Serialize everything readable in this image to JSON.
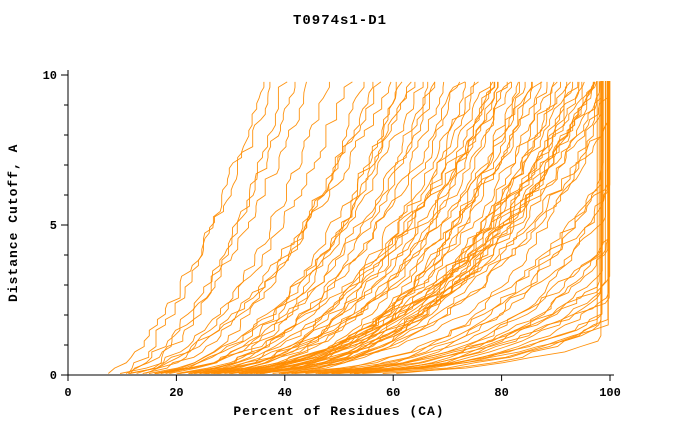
{
  "accent_color": "#ff8c00",
  "axis_color": "#000000",
  "background_color": "#ffffff",
  "chart_data": {
    "type": "line",
    "title": "T0974s1-D1",
    "xlabel": "Percent of Residues (CA)",
    "ylabel": "Distance Cutoff, A",
    "xlim": [
      0,
      100
    ],
    "ylim": [
      0,
      10
    ],
    "x_ticks": [
      0,
      20,
      40,
      60,
      80,
      100
    ],
    "y_ticks": [
      0,
      5,
      10
    ],
    "y_minor_step": 1,
    "grid": false,
    "legend": "none",
    "line_color": "#ff8c00",
    "series_description": "Cumulative model-accuracy curves: each curve is one predicted model; x = percent of CA residues superimposable, y = distance cutoff in Angstroms. Each curve is encoded as [x_at_bottom, x_at_top_extrapolated, shape_exponent]; curves hitting 100% rise vertically at the right edge.",
    "ytop_plot": 9.8,
    "curves": [
      [
        6,
        38,
        1.6
      ],
      [
        8,
        42,
        1.8
      ],
      [
        10,
        36,
        1.5
      ],
      [
        12,
        48,
        2.0
      ],
      [
        7,
        52,
        2.1
      ],
      [
        9,
        45,
        1.7
      ],
      [
        13,
        55,
        2.2
      ],
      [
        11,
        40,
        1.9
      ],
      [
        8,
        58,
        2.0
      ],
      [
        10,
        62,
        2.4
      ],
      [
        12,
        66,
        2.2
      ],
      [
        14,
        70,
        2.6
      ],
      [
        16,
        74,
        2.8
      ],
      [
        18,
        78,
        2.5
      ],
      [
        9,
        60,
        1.9
      ],
      [
        11,
        64,
        2.3
      ],
      [
        13,
        68,
        2.7
      ],
      [
        15,
        72,
        2.9
      ],
      [
        17,
        76,
        2.4
      ],
      [
        19,
        80,
        2.8
      ],
      [
        10,
        57,
        2.1
      ],
      [
        12,
        63,
        2.5
      ],
      [
        14,
        69,
        2.2
      ],
      [
        16,
        75,
        3.0
      ],
      [
        18,
        79,
        2.6
      ],
      [
        20,
        61,
        2.3
      ],
      [
        8,
        67,
        2.7
      ],
      [
        19,
        73,
        2.0
      ],
      [
        10,
        82,
        2.2
      ],
      [
        12,
        86,
        2.6
      ],
      [
        14,
        90,
        3.0
      ],
      [
        16,
        94,
        3.4
      ],
      [
        18,
        98,
        2.8
      ],
      [
        20,
        102,
        3.2
      ],
      [
        22,
        80,
        2.4
      ],
      [
        24,
        84,
        2.9
      ],
      [
        26,
        88,
        3.3
      ],
      [
        28,
        92,
        2.5
      ],
      [
        11,
        96,
        3.1
      ],
      [
        13,
        100,
        2.7
      ],
      [
        15,
        79,
        2.3
      ],
      [
        17,
        83,
        3.5
      ],
      [
        19,
        87,
        2.9
      ],
      [
        21,
        91,
        3.2
      ],
      [
        23,
        95,
        2.6
      ],
      [
        25,
        99,
        3.0
      ],
      [
        27,
        81,
        2.8
      ],
      [
        12,
        85,
        3.4
      ],
      [
        14,
        89,
        2.5
      ],
      [
        16,
        93,
        2.9
      ],
      [
        18,
        97,
        3.3
      ],
      [
        20,
        101,
        2.7
      ],
      [
        22,
        78,
        3.1
      ],
      [
        24,
        82,
        2.4
      ],
      [
        26,
        86,
        2.8
      ],
      [
        28,
        90,
        3.2
      ],
      [
        15,
        94,
        3.6
      ],
      [
        17,
        98,
        2.6
      ],
      [
        12,
        105,
        2.8
      ],
      [
        14,
        112,
        3.2
      ],
      [
        16,
        120,
        3.6
      ],
      [
        18,
        128,
        4.0
      ],
      [
        20,
        136,
        4.4
      ],
      [
        22,
        144,
        3.0
      ],
      [
        24,
        150,
        3.4
      ],
      [
        26,
        98,
        2.6
      ],
      [
        28,
        106,
        3.8
      ],
      [
        30,
        114,
        4.2
      ],
      [
        32,
        122,
        2.9
      ],
      [
        34,
        130,
        3.3
      ],
      [
        35,
        138,
        3.7
      ],
      [
        13,
        146,
        4.1
      ],
      [
        15,
        96,
        2.7
      ],
      [
        17,
        104,
        3.1
      ],
      [
        19,
        112,
        3.5
      ],
      [
        21,
        120,
        3.9
      ],
      [
        23,
        128,
        4.3
      ],
      [
        25,
        136,
        2.9
      ],
      [
        27,
        144,
        3.3
      ],
      [
        29,
        100,
        3.7
      ],
      [
        31,
        108,
        4.1
      ],
      [
        33,
        116,
        2.8
      ],
      [
        34,
        124,
        3.2
      ],
      [
        14,
        132,
        3.6
      ],
      [
        16,
        140,
        4.0
      ],
      [
        18,
        148,
        4.4
      ],
      [
        20,
        97,
        3.0
      ],
      [
        22,
        109,
        3.4
      ]
    ]
  }
}
